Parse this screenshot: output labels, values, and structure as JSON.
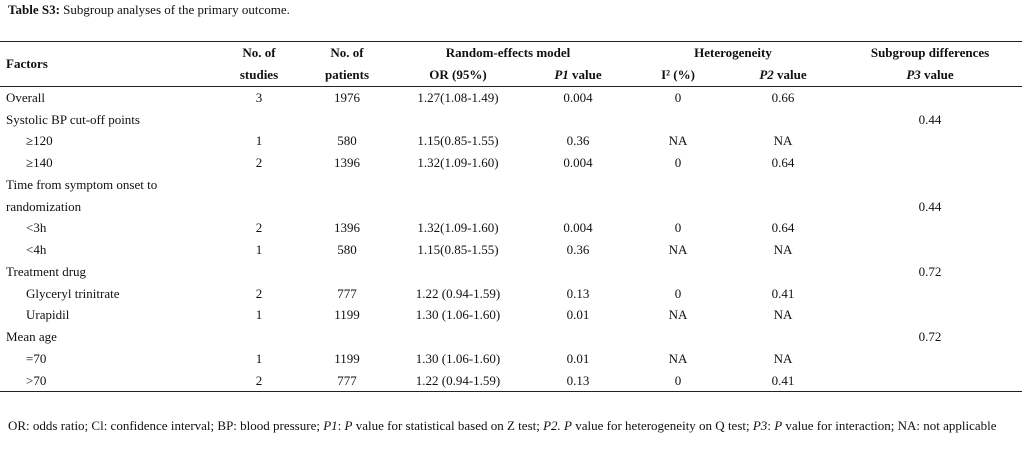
{
  "caption": {
    "label": "Table S3:",
    "text": " Subgroup analyses of the primary outcome."
  },
  "header": {
    "factors": "Factors",
    "studies_l1": "No. of",
    "studies_l2": "studies",
    "patients_l1": "No. of",
    "patients_l2": "patients",
    "re_model": "Random-effects model",
    "or": "OR (95%)",
    "p1": "P1",
    "p1_suffix": " value",
    "heterogeneity": "Heterogeneity",
    "i2": "I² (%)",
    "p2": "P2",
    "p2_suffix": " value",
    "subgroup": "Subgroup differences",
    "p3": "P3",
    "p3_suffix": " value"
  },
  "rows": [
    {
      "factor": "Overall",
      "indent": false,
      "studies": "3",
      "patients": "1976",
      "or": "1.27(1.08-1.49)",
      "p1": "0.004",
      "i2": "0",
      "p2": "0.66",
      "p3": ""
    },
    {
      "factor": "Systolic BP cut-off points",
      "indent": false,
      "studies": "",
      "patients": "",
      "or": "",
      "p1": "",
      "i2": "",
      "p2": "",
      "p3": "0.44"
    },
    {
      "factor": "≥120",
      "indent": true,
      "studies": "1",
      "patients": "580",
      "or": "1.15(0.85-1.55)",
      "p1": "0.36",
      "i2": "NA",
      "p2": "NA",
      "p3": ""
    },
    {
      "factor": "≥140",
      "indent": true,
      "studies": "2",
      "patients": "1396",
      "or": "1.32(1.09-1.60)",
      "p1": "0.004",
      "i2": "0",
      "p2": "0.64",
      "p3": ""
    },
    {
      "factor": "Time from symptom onset to",
      "indent": false,
      "studies": "",
      "patients": "",
      "or": "",
      "p1": "",
      "i2": "",
      "p2": "",
      "p3": ""
    },
    {
      "factor": "randomization",
      "indent": false,
      "studies": "",
      "patients": "",
      "or": "",
      "p1": "",
      "i2": "",
      "p2": "",
      "p3": "0.44"
    },
    {
      "factor": "<3h",
      "indent": true,
      "studies": "2",
      "patients": "1396",
      "or": "1.32(1.09-1.60)",
      "p1": "0.004",
      "i2": "0",
      "p2": "0.64",
      "p3": ""
    },
    {
      "factor": "<4h",
      "indent": true,
      "studies": "1",
      "patients": "580",
      "or": "1.15(0.85-1.55)",
      "p1": "0.36",
      "i2": "NA",
      "p2": "NA",
      "p3": ""
    },
    {
      "factor": "Treatment drug",
      "indent": false,
      "studies": "",
      "patients": "",
      "or": "",
      "p1": "",
      "i2": "",
      "p2": "",
      "p3": "0.72"
    },
    {
      "factor": "Glyceryl trinitrate",
      "indent": true,
      "studies": "2",
      "patients": "777",
      "or": "1.22 (0.94-1.59)",
      "p1": "0.13",
      "i2": "0",
      "p2": "0.41",
      "p3": ""
    },
    {
      "factor": "Urapidil",
      "indent": true,
      "studies": "1",
      "patients": "1199",
      "or": "1.30 (1.06-1.60)",
      "p1": "0.01",
      "i2": "NA",
      "p2": "NA",
      "p3": ""
    },
    {
      "factor": "Mean age",
      "indent": false,
      "studies": "",
      "patients": "",
      "or": "",
      "p1": "",
      "i2": "",
      "p2": "",
      "p3": "0.72"
    },
    {
      "factor": "=70",
      "indent": true,
      "studies": "1",
      "patients": "1199",
      "or": "1.30 (1.06-1.60)",
      "p1": "0.01",
      "i2": "NA",
      "p2": "NA",
      "p3": ""
    },
    {
      "factor": ">70",
      "indent": true,
      "studies": "2",
      "patients": "777",
      "or": "1.22 (0.94-1.59)",
      "p1": "0.13",
      "i2": "0",
      "p2": "0.41",
      "p3": ""
    }
  ],
  "footnote": {
    "a": "OR: odds ratio; Cl: confidence interval; BP: blood pressure; ",
    "p1": "P1",
    "b": ": ",
    "p1b": "P",
    "c": " value for statistical based on Z test; ",
    "p2": "P2. P",
    "d": " value for heterogeneity on Q test; ",
    "p3": "P3",
    "e": ": ",
    "p3b": "P",
    "f": " value for interaction; NA: not applicable"
  }
}
